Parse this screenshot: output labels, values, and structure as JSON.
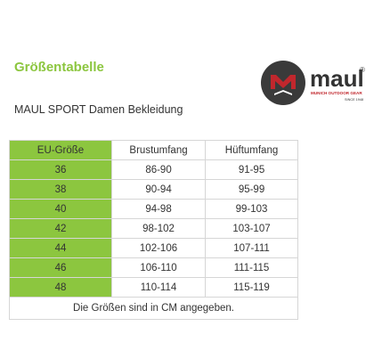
{
  "header": {
    "title": "Größentabelle",
    "subtitle": "MAUL SPORT Damen Bekleidung"
  },
  "logo": {
    "brand": "maul",
    "registered": "®",
    "tagline": "MUNICH OUTDOOR GEAR",
    "since": "SINCE 1948",
    "colors": {
      "circle": "#3a3a3a",
      "red": "#c1272d",
      "text": "#333333"
    }
  },
  "table": {
    "headers": [
      "EU-Größe",
      "Brustumfang",
      "Hüftumfang"
    ],
    "rows": [
      [
        "36",
        "86-90",
        "91-95"
      ],
      [
        "38",
        "90-94",
        "95-99"
      ],
      [
        "40",
        "94-98",
        "99-103"
      ],
      [
        "42",
        "98-102",
        "103-107"
      ],
      [
        "44",
        "102-106",
        "107-111"
      ],
      [
        "46",
        "106-110",
        "111-115"
      ],
      [
        "48",
        "110-114",
        "115-119"
      ]
    ],
    "note": "Die Größen sind in CM angegeben.",
    "accent_color": "#8cc63f"
  }
}
